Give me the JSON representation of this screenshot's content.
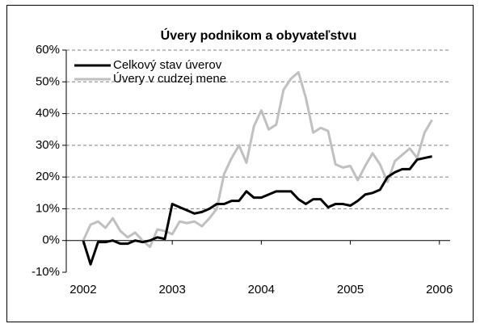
{
  "chart_data": {
    "type": "line",
    "title": "Úvery podnikom a obyvateľstvu",
    "x": [
      2002,
      2002.083,
      2002.167,
      2002.25,
      2002.333,
      2002.417,
      2002.5,
      2002.583,
      2002.667,
      2002.75,
      2002.833,
      2002.917,
      2003,
      2003.083,
      2003.167,
      2003.25,
      2003.333,
      2003.417,
      2003.5,
      2003.583,
      2003.667,
      2003.75,
      2003.833,
      2003.917,
      2004,
      2004.083,
      2004.167,
      2004.25,
      2004.333,
      2004.417,
      2004.5,
      2004.583,
      2004.667,
      2004.75,
      2004.833,
      2004.917,
      2005,
      2005.083,
      2005.167,
      2005.25,
      2005.333,
      2005.417,
      2005.5,
      2005.583,
      2005.667,
      2005.75,
      2005.833,
      2005.917
    ],
    "series": [
      {
        "name": "Celkový stav úverov",
        "color": "#000000",
        "values": [
          0,
          -7.5,
          -0.5,
          -0.5,
          0,
          -1,
          -1,
          0,
          -0.5,
          0,
          1,
          0.5,
          11.5,
          10.5,
          9.5,
          8.5,
          9,
          10,
          11.5,
          11.5,
          12.5,
          12.5,
          15.5,
          13.5,
          13.5,
          14.5,
          15.5,
          15.5,
          15.5,
          13,
          11.5,
          13,
          13,
          10.5,
          11.5,
          11.5,
          11,
          12.5,
          14.5,
          15,
          16,
          20,
          21.5,
          22.5,
          22.5,
          25.5,
          26,
          26.5
        ]
      },
      {
        "name": "Úvery v cudzej mene",
        "color": "#c0c0c0",
        "values": [
          0,
          5,
          6,
          4,
          7,
          3,
          1,
          2.5,
          0,
          -2,
          3.5,
          3,
          2,
          6,
          5.5,
          6,
          4.5,
          7,
          10,
          21,
          26,
          30,
          24.5,
          36,
          41,
          35,
          36.5,
          47.5,
          51,
          53,
          45,
          34,
          35.5,
          34.5,
          24,
          23,
          23.5,
          19,
          23.5,
          27.5,
          24,
          18.5,
          25,
          27,
          29,
          26,
          34,
          38
        ]
      }
    ],
    "xlim": [
      2001.81,
      2006.12
    ],
    "xticks": [
      2002,
      2003,
      2004,
      2005,
      2006
    ],
    "ylim": [
      -10,
      60
    ],
    "yticks": [
      {
        "value": -10,
        "label": "-10%"
      },
      {
        "value": 0,
        "label": "0%"
      },
      {
        "value": 10,
        "label": "10%"
      },
      {
        "value": 20,
        "label": "20%"
      },
      {
        "value": 30,
        "label": "30%"
      },
      {
        "value": 40,
        "label": "40%"
      },
      {
        "value": 50,
        "label": "50%"
      },
      {
        "value": 60,
        "label": "60%"
      }
    ],
    "grid": true,
    "legend": "upper-left"
  }
}
